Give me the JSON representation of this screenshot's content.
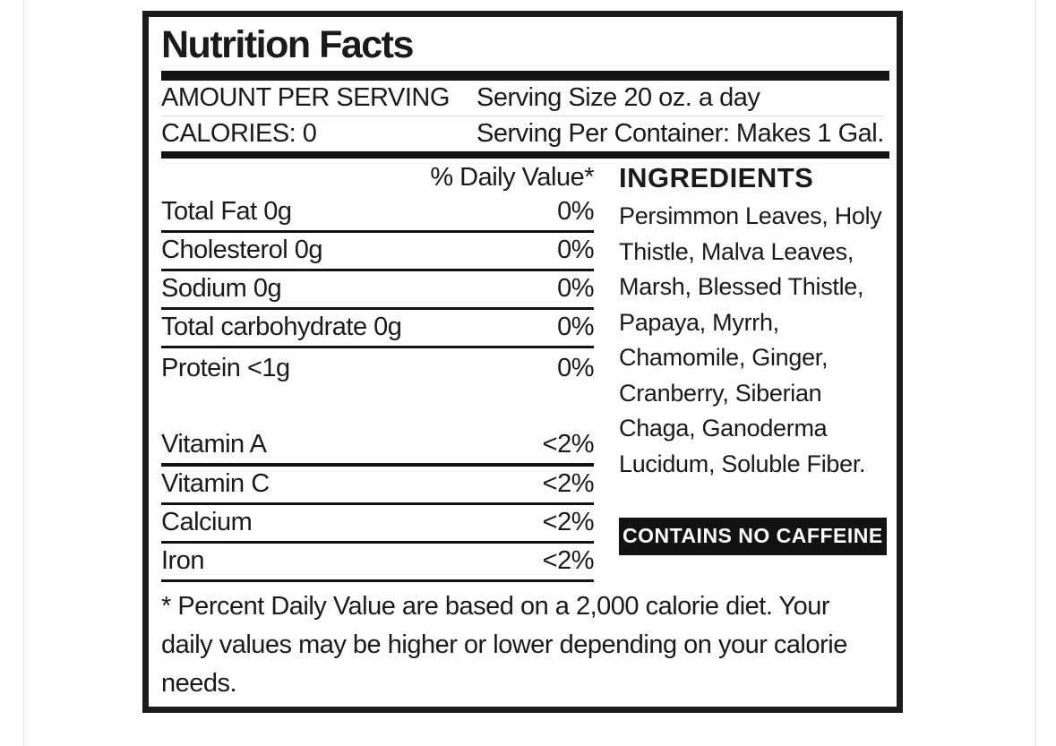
{
  "label": {
    "title": "Nutrition Facts",
    "amount_per_serving": "AMOUNT PER SERVING",
    "calories": "CALORIES: 0",
    "serving_size": "Serving Size 20 oz. a day",
    "serving_per_container": "Serving Per Container: Makes 1 Gal.",
    "daily_value_header": "% Daily Value*",
    "nutrients": [
      {
        "name": "Total Fat 0g",
        "value": "0%"
      },
      {
        "name": "Cholesterol 0g",
        "value": "0%"
      },
      {
        "name": "Sodium 0g",
        "value": "0%"
      },
      {
        "name": "Total carbohydrate 0g",
        "value": "0%"
      },
      {
        "name": "Protein <1g",
        "value": "0%"
      }
    ],
    "vitamins": [
      {
        "name": "Vitamin A",
        "value": "<2%"
      },
      {
        "name": "Vitamin C",
        "value": "<2%"
      },
      {
        "name": "Calcium",
        "value": "<2%"
      },
      {
        "name": "Iron",
        "value": "<2%"
      }
    ],
    "ingredients_title": "INGREDIENTS",
    "ingredients_text": "Persimmon Leaves, Holy Thistle, Malva Leaves, Marsh, Blessed Thistle, Papaya, Myrrh, Chamomile, Ginger, Cranberry, Siberian Chaga, Ganoderma Lucidum, Soluble Fiber.",
    "caffeine_badge": "CONTAINS NO CAFFEINE",
    "footnote": "* Percent Daily Value are based on a 2,000 calorie diet. Your daily values may be higher or lower depending on your calorie needs."
  },
  "colors": {
    "ink": "#1a1a1a",
    "border": "#1b1b1b",
    "badge_bg": "#121212",
    "badge_text": "#ffffff",
    "hairline": "#e3e3e3",
    "background": "#ffffff"
  }
}
